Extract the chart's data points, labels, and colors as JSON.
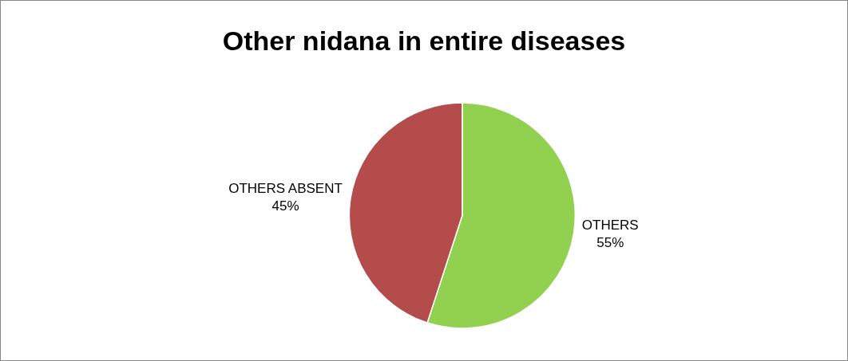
{
  "chart_data": {
    "type": "pie",
    "title": "Other nidana in entire diseases",
    "categories": [
      "OTHERS",
      "OTHERS ABSENT"
    ],
    "values": [
      55,
      45
    ],
    "colors": [
      "#92d050",
      "#b34c4a"
    ],
    "value_labels": [
      "55%",
      "45%"
    ],
    "legend": false
  }
}
